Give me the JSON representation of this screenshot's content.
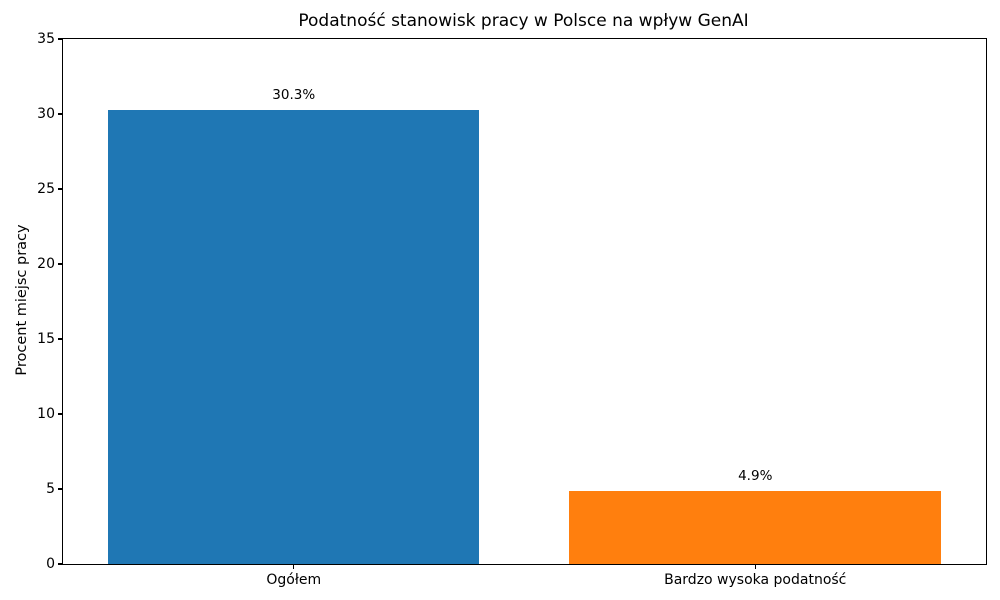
{
  "chart_data": {
    "type": "bar",
    "title": "Podatność stanowisk pracy w Polsce na wpływ GenAI",
    "xlabel": "",
    "ylabel": "Procent miejsc pracy",
    "categories": [
      "Ogółem",
      "Bardzo wysoka podatność"
    ],
    "values": [
      30.3,
      4.9
    ],
    "value_labels": [
      "30.3%",
      "4.9%"
    ],
    "colors": [
      "#1f77b4",
      "#ff7f0e"
    ],
    "ylim": [
      0,
      35
    ],
    "yticks": [
      0,
      5,
      10,
      15,
      20,
      25,
      30,
      35
    ],
    "grid": false,
    "legend": "none",
    "bar_width_fraction": 0.805
  }
}
